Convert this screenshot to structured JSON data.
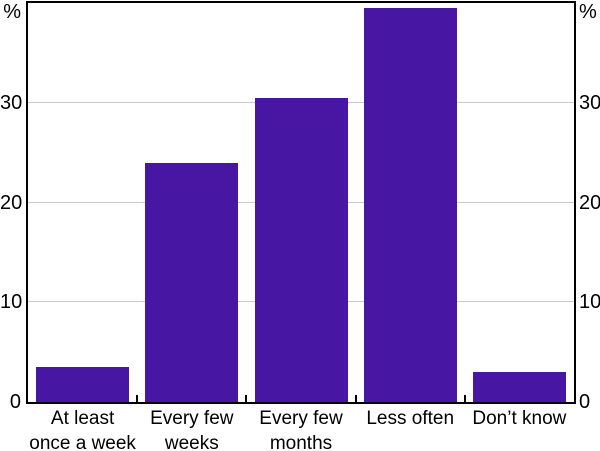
{
  "chart_data": {
    "type": "bar",
    "title": "",
    "xlabel": "",
    "ylabel_left": "%",
    "ylabel_right": "%",
    "categories": [
      "At least once a week",
      "Every few weeks",
      "Every few months",
      "Less often",
      "Don’t know"
    ],
    "category_lines": [
      [
        "At least",
        "once a week"
      ],
      [
        "Every few",
        "weeks"
      ],
      [
        "Every few",
        "months"
      ],
      [
        "Less often"
      ],
      [
        "Don’t know"
      ]
    ],
    "values": [
      3.5,
      24,
      30.5,
      39.5,
      3
    ],
    "ylim": [
      0,
      40
    ],
    "yticks": [
      0,
      10,
      20,
      30
    ],
    "grid": true,
    "legend": "none",
    "bar_color": "#4716A3",
    "gridline_color": "#c9c9c9",
    "axis_color": "#000000",
    "text_color": "#000000"
  }
}
